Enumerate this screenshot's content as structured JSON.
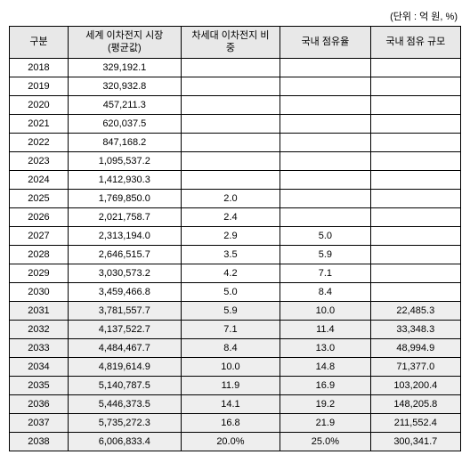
{
  "unit_label": "(단위 : 억 원, %)",
  "headers": {
    "year": "구분",
    "market": "세계 이차전지 시장\n(평균값)",
    "ratio": "차세대 이차전지 비\n중",
    "share": "국내 점유율",
    "scale": "국내 점유 규모"
  },
  "rows": [
    {
      "year": "2018",
      "market": "329,192.1",
      "ratio": "",
      "share": "",
      "scale": "",
      "shaded": false
    },
    {
      "year": "2019",
      "market": "320,932.8",
      "ratio": "",
      "share": "",
      "scale": "",
      "shaded": false
    },
    {
      "year": "2020",
      "market": "457,211.3",
      "ratio": "",
      "share": "",
      "scale": "",
      "shaded": false
    },
    {
      "year": "2021",
      "market": "620,037.5",
      "ratio": "",
      "share": "",
      "scale": "",
      "shaded": false
    },
    {
      "year": "2022",
      "market": "847,168.2",
      "ratio": "",
      "share": "",
      "scale": "",
      "shaded": false
    },
    {
      "year": "2023",
      "market": "1,095,537.2",
      "ratio": "",
      "share": "",
      "scale": "",
      "shaded": false
    },
    {
      "year": "2024",
      "market": "1,412,930.3",
      "ratio": "",
      "share": "",
      "scale": "",
      "shaded": false
    },
    {
      "year": "2025",
      "market": "1,769,850.0",
      "ratio": "2.0",
      "share": "",
      "scale": "",
      "shaded": false
    },
    {
      "year": "2026",
      "market": "2,021,758.7",
      "ratio": "2.4",
      "share": "",
      "scale": "",
      "shaded": false
    },
    {
      "year": "2027",
      "market": "2,313,194.0",
      "ratio": "2.9",
      "share": "5.0",
      "scale": "",
      "shaded": false
    },
    {
      "year": "2028",
      "market": "2,646,515.7",
      "ratio": "3.5",
      "share": "5.9",
      "scale": "",
      "shaded": false
    },
    {
      "year": "2029",
      "market": "3,030,573.2",
      "ratio": "4.2",
      "share": "7.1",
      "scale": "",
      "shaded": false
    },
    {
      "year": "2030",
      "market": "3,459,466.8",
      "ratio": "5.0",
      "share": "8.4",
      "scale": "",
      "shaded": false
    },
    {
      "year": "2031",
      "market": "3,781,557.7",
      "ratio": "5.9",
      "share": "10.0",
      "scale": "22,485.3",
      "shaded": true
    },
    {
      "year": "2032",
      "market": "4,137,522.7",
      "ratio": "7.1",
      "share": "11.4",
      "scale": "33,348.3",
      "shaded": true
    },
    {
      "year": "2033",
      "market": "4,484,467.7",
      "ratio": "8.4",
      "share": "13.0",
      "scale": "48,994.9",
      "shaded": true
    },
    {
      "year": "2034",
      "market": "4,819,614.9",
      "ratio": "10.0",
      "share": "14.8",
      "scale": "71,377.0",
      "shaded": true
    },
    {
      "year": "2035",
      "market": "5,140,787.5",
      "ratio": "11.9",
      "share": "16.9",
      "scale": "103,200.4",
      "shaded": true
    },
    {
      "year": "2036",
      "market": "5,446,373.5",
      "ratio": "14.1",
      "share": "19.2",
      "scale": "148,205.8",
      "shaded": true
    },
    {
      "year": "2037",
      "market": "5,735,272.3",
      "ratio": "16.8",
      "share": "21.9",
      "scale": "211,552.4",
      "shaded": true
    },
    {
      "year": "2038",
      "market": "6,006,833.4",
      "ratio": "20.0%",
      "share": "25.0%",
      "scale": "300,341.7",
      "shaded": true
    }
  ]
}
